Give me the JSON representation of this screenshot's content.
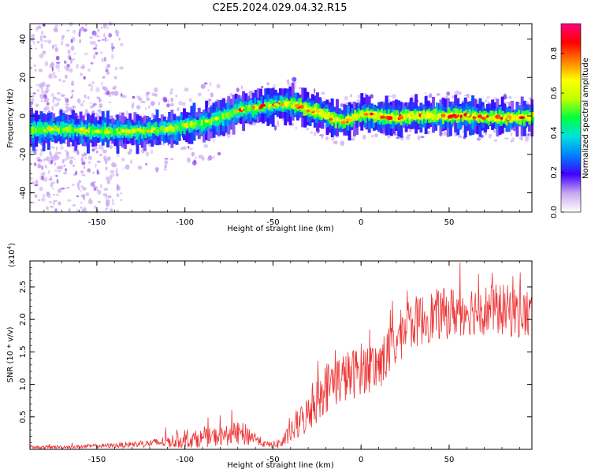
{
  "figure_title": "C2E5.2024.029.04.32.R15",
  "chart_data": [
    {
      "type": "heatmap",
      "title": "C2E5.2024.029.04.32.R15",
      "xlabel": "Height of straight line (km)",
      "ylabel": "Frequency (Hz)",
      "xlim": [
        -188,
        97
      ],
      "ylim": [
        -50,
        48
      ],
      "x_ticks": [
        -150,
        -100,
        -50,
        0,
        50
      ],
      "x_tick_labels": [
        "-150",
        "-100",
        "-50",
        "0",
        "50"
      ],
      "y_ticks": [
        -40,
        -20,
        0,
        20,
        40
      ],
      "y_tick_labels": [
        "-40",
        "-20",
        "0",
        "20",
        "40"
      ],
      "ridge_x": [
        -188,
        -170,
        -150,
        -130,
        -110,
        -100,
        -90,
        -80,
        -70,
        -60,
        -55,
        -50,
        -45,
        -40,
        -35,
        -30,
        -25,
        -20,
        -15,
        -10,
        -5,
        0,
        10,
        20,
        30,
        40,
        50,
        60,
        70,
        80,
        90,
        97
      ],
      "ridge_freq": [
        -7,
        -7,
        -8,
        -8,
        -7,
        -5,
        -4,
        -1,
        3,
        4,
        5,
        5.5,
        6,
        6,
        5,
        3,
        2,
        0,
        -2,
        -3,
        -1,
        1,
        0,
        -1,
        0,
        0,
        0,
        0,
        -1,
        -1,
        -1,
        0
      ],
      "colorbar": {
        "label": "Normalized spectral amplitude",
        "range": [
          0,
          0.95
        ],
        "ticks": [
          0.0,
          0.2,
          0.4,
          0.6,
          0.8
        ],
        "tick_labels": [
          "0.0",
          "0.2",
          "0.4",
          "0.6",
          "0.8"
        ],
        "colors": [
          "#ffffff",
          "#c8a8f0",
          "#4000ff",
          "#0080ff",
          "#00e0e0",
          "#00ff40",
          "#c0ff00",
          "#ffff00",
          "#ff8000",
          "#ff0000",
          "#ff0080"
        ]
      }
    },
    {
      "type": "line",
      "xlabel": "Height of straight line (km)",
      "ylabel": "SNR (10 * v/v)",
      "scale_label": "(x10",
      "scale_exponent": "4",
      "scale_close": ")",
      "xlim": [
        -188,
        97
      ],
      "ylim": [
        0,
        2.9
      ],
      "x_ticks": [
        -150,
        -100,
        -50,
        0,
        50
      ],
      "x_tick_labels": [
        "-150",
        "-100",
        "-50",
        "0",
        "50"
      ],
      "y_ticks": [
        0.5,
        1.0,
        1.5,
        2.0,
        2.5
      ],
      "y_tick_labels": [
        "0.5",
        "1.0",
        "1.5",
        "2.0",
        "2.5"
      ],
      "line_color": "#ee3333",
      "envelope_x": [
        -188,
        -160,
        -140,
        -120,
        -110,
        -100,
        -90,
        -80,
        -70,
        -65,
        -60,
        -55,
        -50,
        -45,
        -40,
        -35,
        -30,
        -25,
        -20,
        -15,
        -10,
        -5,
        0,
        5,
        10,
        15,
        20,
        25,
        30,
        35,
        40,
        50,
        60,
        70,
        80,
        90,
        97
      ],
      "envelope_mean": [
        0.03,
        0.04,
        0.06,
        0.09,
        0.12,
        0.14,
        0.17,
        0.2,
        0.24,
        0.22,
        0.18,
        0.08,
        0.07,
        0.1,
        0.25,
        0.4,
        0.55,
        0.75,
        0.95,
        1.05,
        1.1,
        1.15,
        1.25,
        1.25,
        1.3,
        1.45,
        1.65,
        1.85,
        1.95,
        2.0,
        2.05,
        2.1,
        2.15,
        2.15,
        2.15,
        2.1,
        2.05
      ],
      "envelope_spread": [
        0.02,
        0.03,
        0.04,
        0.06,
        0.1,
        0.12,
        0.14,
        0.15,
        0.18,
        0.18,
        0.1,
        0.05,
        0.05,
        0.1,
        0.15,
        0.25,
        0.3,
        0.35,
        0.4,
        0.4,
        0.4,
        0.4,
        0.4,
        0.4,
        0.4,
        0.4,
        0.4,
        0.4,
        0.4,
        0.4,
        0.4,
        0.4,
        0.4,
        0.4,
        0.4,
        0.4,
        0.4
      ]
    }
  ]
}
